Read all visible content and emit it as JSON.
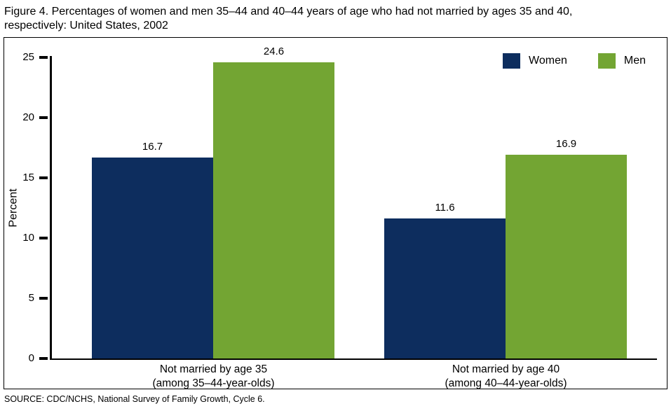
{
  "figure": {
    "title": "Figure 4. Percentages of women and men 35–44 and 40–44 years of age who had not married by ages 35 and 40, respectively: United States, 2002",
    "source": "SOURCE: CDC/NCHS, National Survey of Family Growth, Cycle 6."
  },
  "chart_data": {
    "type": "bar",
    "title": "Figure 4. Percentages of women and men 35–44 and 40–44 years of age who had not married by ages 35 and 40, respectively: United States, 2002",
    "categories": [
      {
        "line1": "Not  married by age 35",
        "line2": "(among 35–44-year-olds)"
      },
      {
        "line1": "Not married by age 40",
        "line2": "(among 40–44-year-olds)"
      }
    ],
    "series": [
      {
        "name": "Women",
        "color": "#0d2d5e",
        "values": [
          16.7,
          11.6
        ]
      },
      {
        "name": "Men",
        "color": "#73a533",
        "values": [
          24.6,
          16.9
        ]
      }
    ],
    "xlabel": "",
    "ylabel": "Percent",
    "ylim": [
      0,
      25
    ],
    "yticks": [
      0,
      5,
      10,
      15,
      20,
      25
    ],
    "grid": false,
    "legend_position": "top-right"
  }
}
